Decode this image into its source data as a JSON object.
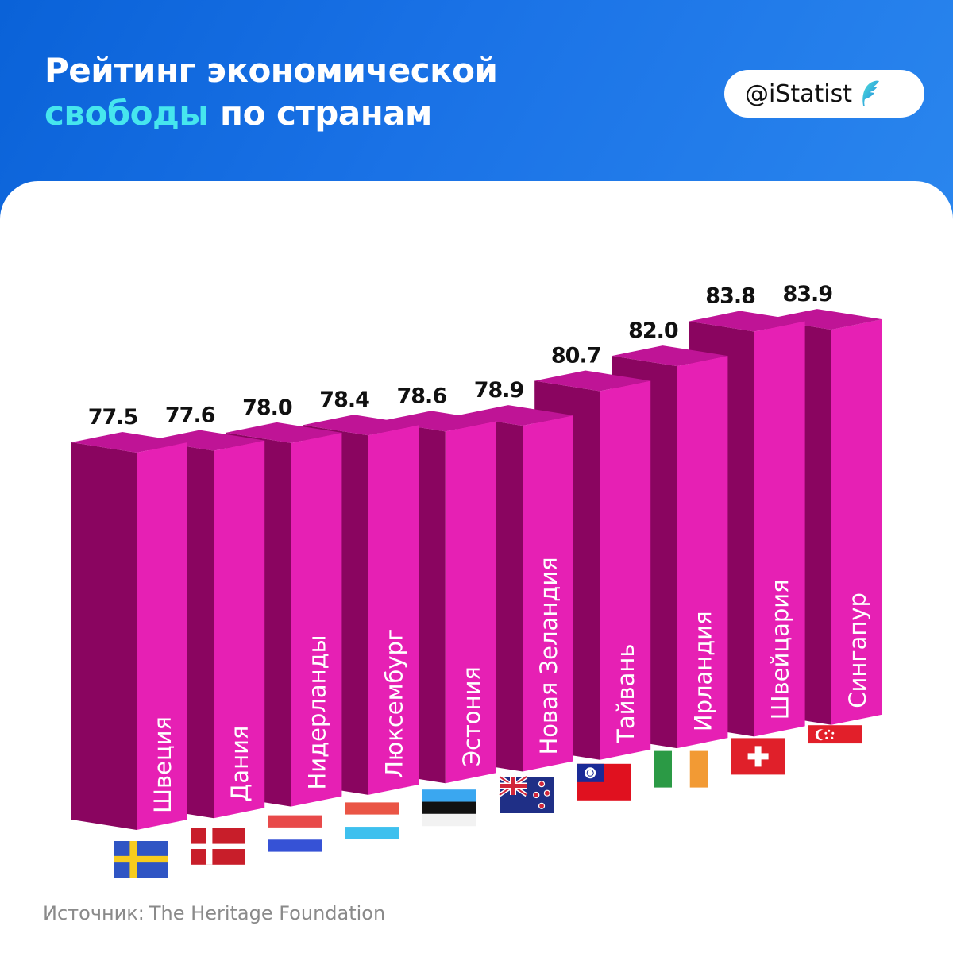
{
  "header": {
    "title_line1": "Рейтинг экономической",
    "title_highlight": "свободы",
    "title_rest": "по странам",
    "brand": "@iStatist",
    "brand_logo_icon": "feather-logo-icon"
  },
  "chart_data": {
    "type": "bar",
    "categories": [
      "Швеция",
      "Дания",
      "Нидерланды",
      "Люксембург",
      "Эстония",
      "Новая Зеландия",
      "Тайвань",
      "Ирландия",
      "Швейцария",
      "Сингапур"
    ],
    "values": [
      77.5,
      77.6,
      78.0,
      78.4,
      78.6,
      78.9,
      80.7,
      82.0,
      83.8,
      83.9
    ],
    "value_labels": [
      "77.5",
      "77.6",
      "78.0",
      "78.4",
      "78.6",
      "78.9",
      "80.7",
      "82.0",
      "83.8",
      "83.9"
    ],
    "flags": [
      "sweden-flag-icon",
      "denmark-flag-icon",
      "netherlands-flag-icon",
      "luxembourg-flag-icon",
      "estonia-flag-icon",
      "new-zealand-flag-icon",
      "taiwan-flag-icon",
      "ireland-flag-icon",
      "switzerland-flag-icon",
      "singapore-flag-icon"
    ],
    "title": "",
    "xlabel": "",
    "ylabel": "",
    "style": "3d-columns",
    "grid": false,
    "legend": "none",
    "colors": {
      "front": "#e620b4",
      "side": "#8a0560",
      "top": "#bf1496"
    }
  },
  "footer": {
    "source_prefix": "Источник:",
    "source_name": "The Heritage Foundation"
  },
  "colors": {
    "header_bg": "#1a72e6",
    "highlight": "#46e6ee",
    "bar_front": "#e620b4",
    "bar_side": "#8a0560"
  }
}
